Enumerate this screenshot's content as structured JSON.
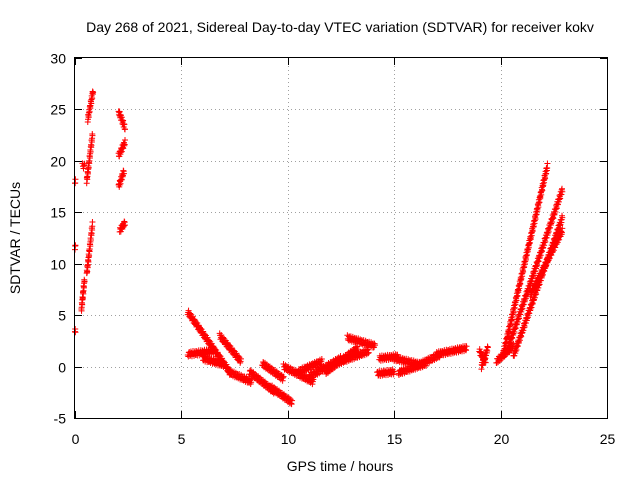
{
  "chart_data": {
    "type": "scatter",
    "title": "Day 268 of 2021, Sidereal Day-to-day VTEC variation (SDTVAR) for receiver kokv",
    "xlabel": "GPS time / hours",
    "ylabel": "SDTVAR / TECUs",
    "xlim": [
      0,
      25
    ],
    "ylim": [
      -5,
      30
    ],
    "xticks": [
      0,
      5,
      10,
      15,
      20,
      25
    ],
    "yticks": [
      -5,
      0,
      5,
      10,
      15,
      20,
      25,
      30
    ],
    "xtick_labels": [
      "0",
      "5",
      "10",
      "15",
      "20",
      "25"
    ],
    "ytick_labels": [
      "-5",
      "0",
      "5",
      "10",
      "15",
      "20",
      "25",
      "30"
    ],
    "grid": true,
    "marker": "+",
    "color": "#ff0000",
    "tracks": [
      {
        "name": "track-a1",
        "t0": 0.0,
        "t1": 0.02,
        "v0": 3.4,
        "v1": 3.4
      },
      {
        "name": "track-a2",
        "t0": 0.0,
        "t1": 0.02,
        "v0": 11.6,
        "v1": 11.6
      },
      {
        "name": "track-a3",
        "t0": 0.0,
        "t1": 0.02,
        "v0": 18.0,
        "v1": 18.0
      },
      {
        "name": "track-a4",
        "t0": 0.3,
        "t1": 0.45,
        "v0": 5.5,
        "v1": 8.5
      },
      {
        "name": "track-a5",
        "t0": 0.35,
        "t1": 0.45,
        "v0": 19.5,
        "v1": 19.5
      },
      {
        "name": "track-b1",
        "t0": 0.55,
        "t1": 0.82,
        "v0": 9.0,
        "v1": 13.8
      },
      {
        "name": "track-b2",
        "t0": 0.55,
        "t1": 0.82,
        "v0": 18.0,
        "v1": 22.5
      },
      {
        "name": "track-b3",
        "t0": 0.6,
        "t1": 0.85,
        "v0": 24.0,
        "v1": 26.8
      },
      {
        "name": "track-c1",
        "t0": 2.05,
        "t1": 2.35,
        "v0": 24.8,
        "v1": 23.2
      },
      {
        "name": "track-c2",
        "t0": 2.05,
        "t1": 2.35,
        "v0": 20.5,
        "v1": 21.8
      },
      {
        "name": "track-c3",
        "t0": 2.05,
        "t1": 2.3,
        "v0": 17.5,
        "v1": 19.0
      },
      {
        "name": "track-c4",
        "t0": 2.1,
        "t1": 2.35,
        "v0": 13.2,
        "v1": 14.0
      },
      {
        "name": "track-d1",
        "t0": 5.3,
        "t1": 7.3,
        "v0": 5.3,
        "v1": -0.6
      },
      {
        "name": "track-d2",
        "t0": 5.3,
        "t1": 6.5,
        "v0": 1.2,
        "v1": 1.5
      },
      {
        "name": "track-d3",
        "t0": 6.0,
        "t1": 7.0,
        "v0": 0.8,
        "v1": 0.2
      },
      {
        "name": "track-d4",
        "t0": 6.8,
        "t1": 7.8,
        "v0": 3.0,
        "v1": 0.5
      },
      {
        "name": "track-d5",
        "t0": 7.2,
        "t1": 8.3,
        "v0": -0.5,
        "v1": -1.5
      },
      {
        "name": "track-e1",
        "t0": 8.2,
        "t1": 9.4,
        "v0": -0.5,
        "v1": -2.5
      },
      {
        "name": "track-e2",
        "t0": 8.8,
        "t1": 9.8,
        "v0": 0.3,
        "v1": -1.2
      },
      {
        "name": "track-e3",
        "t0": 9.2,
        "t1": 10.2,
        "v0": -2.0,
        "v1": -3.5
      },
      {
        "name": "track-e4",
        "t0": 9.8,
        "t1": 11.2,
        "v0": 0.0,
        "v1": -1.5
      },
      {
        "name": "track-e5",
        "t0": 10.5,
        "t1": 11.6,
        "v0": -0.5,
        "v1": 0.5
      },
      {
        "name": "track-e6",
        "t0": 11.0,
        "t1": 12.5,
        "v0": -1.0,
        "v1": 0.8
      },
      {
        "name": "track-f1",
        "t0": 11.8,
        "t1": 13.3,
        "v0": -0.5,
        "v1": 1.8
      },
      {
        "name": "track-f2",
        "t0": 12.5,
        "t1": 13.8,
        "v0": 0.5,
        "v1": 1.5
      },
      {
        "name": "track-f3",
        "t0": 12.8,
        "t1": 14.1,
        "v0": 2.8,
        "v1": 2.0
      },
      {
        "name": "track-g1",
        "t0": 14.2,
        "t1": 15.0,
        "v0": -0.7,
        "v1": -0.5
      },
      {
        "name": "track-g2",
        "t0": 14.3,
        "t1": 15.2,
        "v0": 0.8,
        "v1": 1.0
      },
      {
        "name": "track-g3",
        "t0": 15.0,
        "t1": 16.2,
        "v0": 0.8,
        "v1": 0.2
      },
      {
        "name": "track-g4",
        "t0": 15.2,
        "t1": 16.5,
        "v0": -0.6,
        "v1": 0.3
      },
      {
        "name": "track-h1",
        "t0": 16.2,
        "t1": 17.2,
        "v0": 0.2,
        "v1": 1.2
      },
      {
        "name": "track-h2",
        "t0": 17.0,
        "t1": 18.4,
        "v0": 1.2,
        "v1": 1.8
      },
      {
        "name": "track-i1",
        "t0": 19.0,
        "t1": 19.3,
        "v0": 1.5,
        "v1": 0.5
      },
      {
        "name": "track-i2",
        "t0": 19.1,
        "t1": 19.4,
        "v0": 0.0,
        "v1": 1.8
      },
      {
        "name": "track-i3",
        "t0": 19.8,
        "t1": 20.6,
        "v0": 0.5,
        "v1": 2.0
      },
      {
        "name": "track-j1",
        "t0": 20.1,
        "t1": 22.2,
        "v0": 1.0,
        "v1": 19.5
      },
      {
        "name": "track-j2",
        "t0": 20.3,
        "t1": 22.9,
        "v0": 1.5,
        "v1": 17.2
      },
      {
        "name": "track-j3",
        "t0": 20.6,
        "t1": 22.9,
        "v0": 1.0,
        "v1": 14.5
      },
      {
        "name": "track-j4",
        "t0": 21.4,
        "t1": 22.9,
        "v0": 7.0,
        "v1": 13.2
      }
    ]
  }
}
